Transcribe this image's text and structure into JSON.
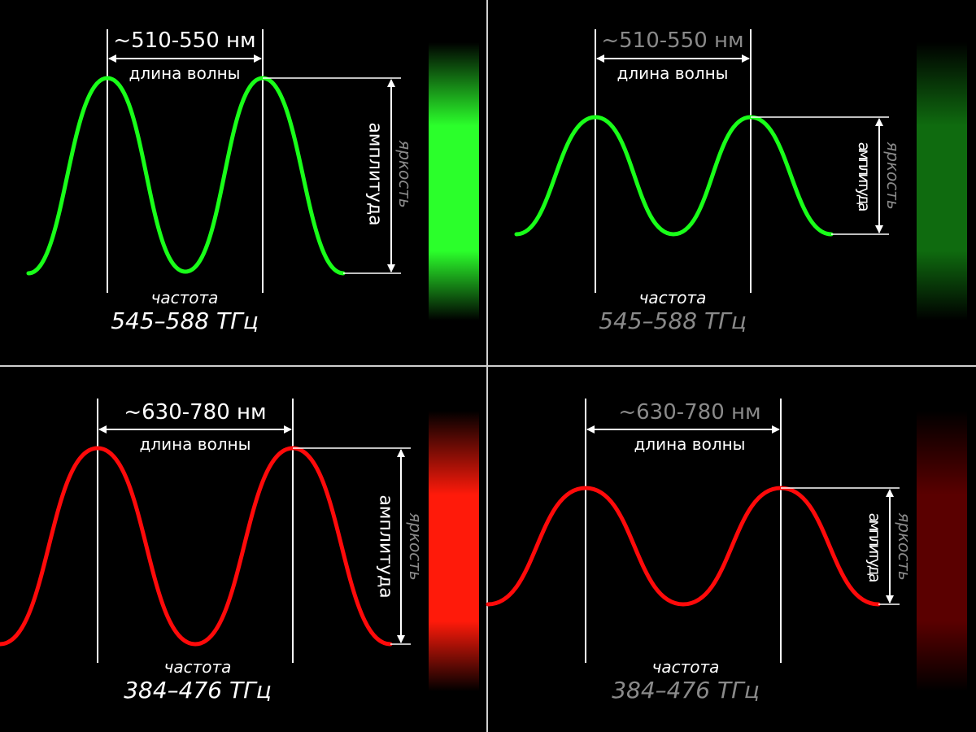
{
  "labels": {
    "wavelength": "длина волны",
    "frequency": "частота",
    "amplitude": "амплитуда",
    "brightness": "яркость"
  },
  "panels": [
    {
      "id": "green-bright",
      "wavelength_range": "~510-550 нм",
      "frequency_range": "545–588 ТГц",
      "wave_color": "#19ff19",
      "bar_color": "#2bff2b",
      "amplitude_level": "high",
      "text_color": "#ffffff"
    },
    {
      "id": "green-dim",
      "wavelength_range": "~510-550 нм",
      "frequency_range": "545–588 ТГц",
      "wave_color": "#19ff19",
      "bar_color": "#0f6b0f",
      "amplitude_level": "low",
      "text_color": "#8a8a8a"
    },
    {
      "id": "red-bright",
      "wavelength_range": "~630-780 нм",
      "frequency_range": "384–476 ТГц",
      "wave_color": "#ff0a0a",
      "bar_color": "#ff1a0a",
      "amplitude_level": "high",
      "text_color": "#ffffff"
    },
    {
      "id": "red-dim",
      "wavelength_range": "~630-780 нм",
      "frequency_range": "384–476 ТГц",
      "wave_color": "#ff0a0a",
      "bar_color": "#5a0000",
      "amplitude_level": "low",
      "text_color": "#8a8a8a"
    }
  ]
}
